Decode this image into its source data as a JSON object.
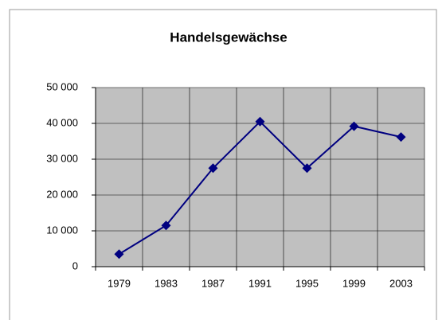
{
  "chart_data": {
    "type": "line",
    "title": "Handelsgewächse",
    "categories": [
      "1979",
      "1983",
      "1987",
      "1991",
      "1995",
      "1999",
      "2003"
    ],
    "series": [
      {
        "color": "#000080",
        "values": [
          3500,
          11500,
          27500,
          40500,
          27500,
          39200,
          36200
        ]
      }
    ],
    "ylim": [
      0,
      50000
    ],
    "yticks": [
      0,
      {
        "value": 10000,
        "label": "10 000"
      },
      {
        "value": 20000,
        "label": "20 000"
      },
      {
        "value": 30000,
        "label": "30 000"
      },
      {
        "value": 40000,
        "label": "40 000"
      },
      {
        "value": 50000,
        "label": "50 000"
      }
    ],
    "grid": true
  }
}
